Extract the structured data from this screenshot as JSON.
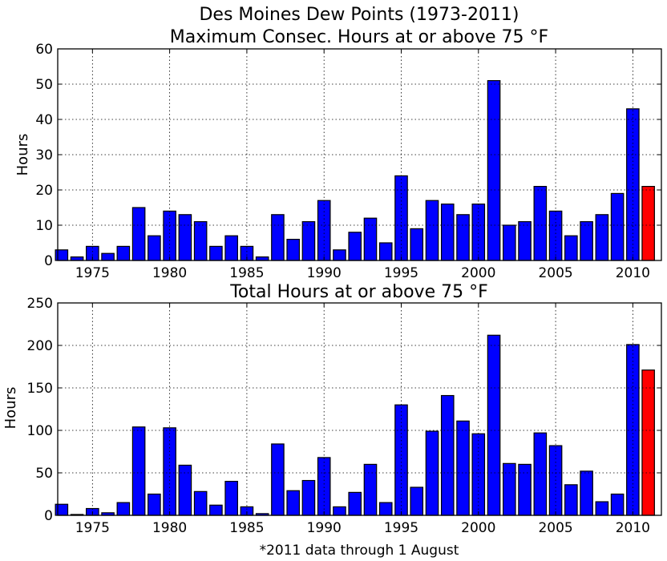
{
  "title_line1": "Des Moines Dew Points (1973-2011)",
  "footnote": "*2011 data through 1 August",
  "colors": {
    "normal": "#0000ff",
    "highlight": "#ff0000"
  },
  "chart_data": [
    {
      "type": "bar",
      "title": "Maximum Consec. Hours at or above 75 °F",
      "ylabel": "Hours",
      "xlabel": "",
      "ylim": [
        0,
        60
      ],
      "yticks": [
        0,
        10,
        20,
        30,
        40,
        50,
        60
      ],
      "xticks": [
        1975,
        1980,
        1985,
        1990,
        1995,
        2000,
        2005,
        2010
      ],
      "grid": true,
      "highlight_year": 2011,
      "x": [
        1973,
        1974,
        1975,
        1976,
        1977,
        1978,
        1979,
        1980,
        1981,
        1982,
        1983,
        1984,
        1985,
        1986,
        1987,
        1988,
        1989,
        1990,
        1991,
        1992,
        1993,
        1994,
        1995,
        1996,
        1997,
        1998,
        1999,
        2000,
        2001,
        2002,
        2003,
        2004,
        2005,
        2006,
        2007,
        2008,
        2009,
        2010,
        2011
      ],
      "values": [
        3,
        1,
        4,
        2,
        4,
        15,
        7,
        14,
        13,
        11,
        4,
        7,
        4,
        1,
        13,
        6,
        11,
        17,
        3,
        8,
        12,
        5,
        24,
        9,
        17,
        16,
        13,
        16,
        51,
        10,
        11,
        21,
        14,
        7,
        11,
        13,
        19,
        43,
        21
      ]
    },
    {
      "type": "bar",
      "title": "Total Hours at or above 75 °F",
      "ylabel": "Hours",
      "xlabel": "*2011 data through 1 August",
      "ylim": [
        0,
        250
      ],
      "yticks": [
        0,
        50,
        100,
        150,
        200,
        250
      ],
      "xticks": [
        1975,
        1980,
        1985,
        1990,
        1995,
        2000,
        2005,
        2010
      ],
      "grid": true,
      "highlight_year": 2011,
      "x": [
        1973,
        1974,
        1975,
        1976,
        1977,
        1978,
        1979,
        1980,
        1981,
        1982,
        1983,
        1984,
        1985,
        1986,
        1987,
        1988,
        1989,
        1990,
        1991,
        1992,
        1993,
        1994,
        1995,
        1996,
        1997,
        1998,
        1999,
        2000,
        2001,
        2002,
        2003,
        2004,
        2005,
        2006,
        2007,
        2008,
        2009,
        2010,
        2011
      ],
      "values": [
        13,
        1,
        8,
        3,
        15,
        104,
        25,
        103,
        59,
        28,
        12,
        40,
        10,
        2,
        84,
        29,
        41,
        68,
        10,
        27,
        60,
        15,
        130,
        33,
        99,
        141,
        111,
        96,
        212,
        61,
        60,
        97,
        82,
        36,
        52,
        16,
        25,
        201,
        171
      ]
    }
  ]
}
